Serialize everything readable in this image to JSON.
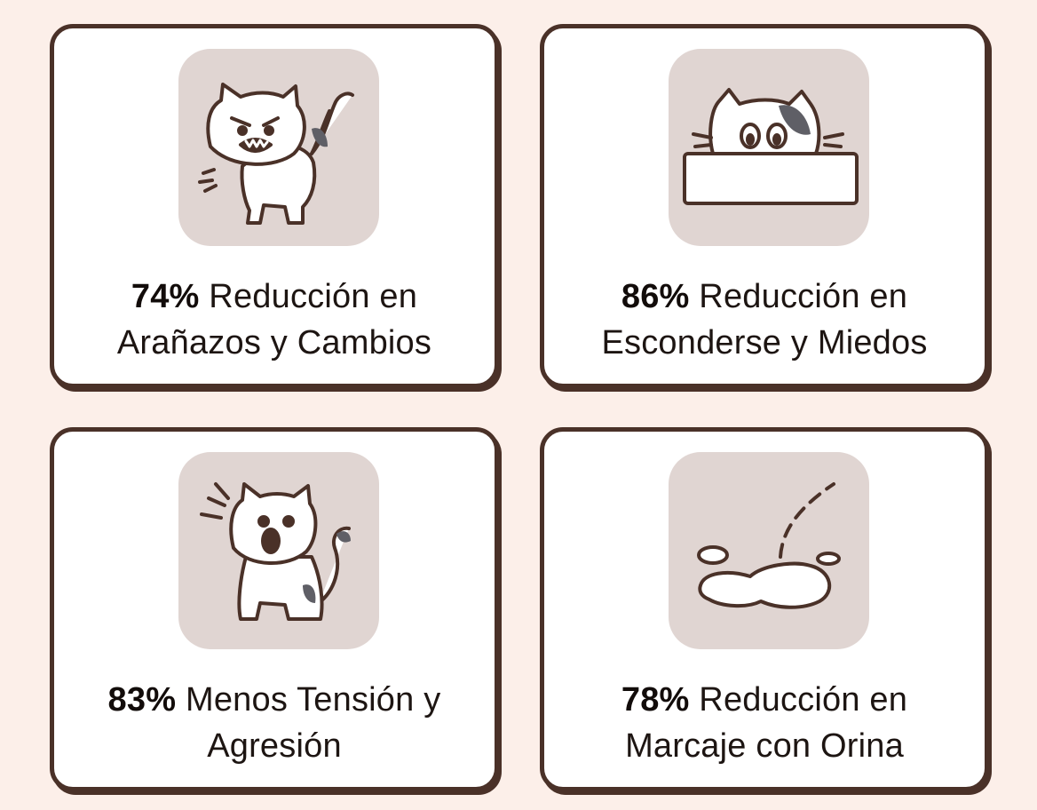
{
  "cards": [
    {
      "stat": "74%",
      "line1": " Reducción en",
      "line2": "Arañazos y Cambios",
      "icon": "angry-cat-icon"
    },
    {
      "stat": "86%",
      "line1": " Reducción en",
      "line2": "Esconderse y Miedos",
      "icon": "hiding-cat-icon"
    },
    {
      "stat": "83%",
      "line1": " Menos Tensión y",
      "line2": "Agresión",
      "icon": "startled-cat-icon"
    },
    {
      "stat": "78%",
      "line1": " Reducción en",
      "line2": "Marcaje con Orina",
      "icon": "urine-puddle-icon"
    }
  ],
  "colors": {
    "background": "#fcefe9",
    "card_border": "#4a3128",
    "icon_tile": "#e0d5d2",
    "text": "#1d1512"
  }
}
